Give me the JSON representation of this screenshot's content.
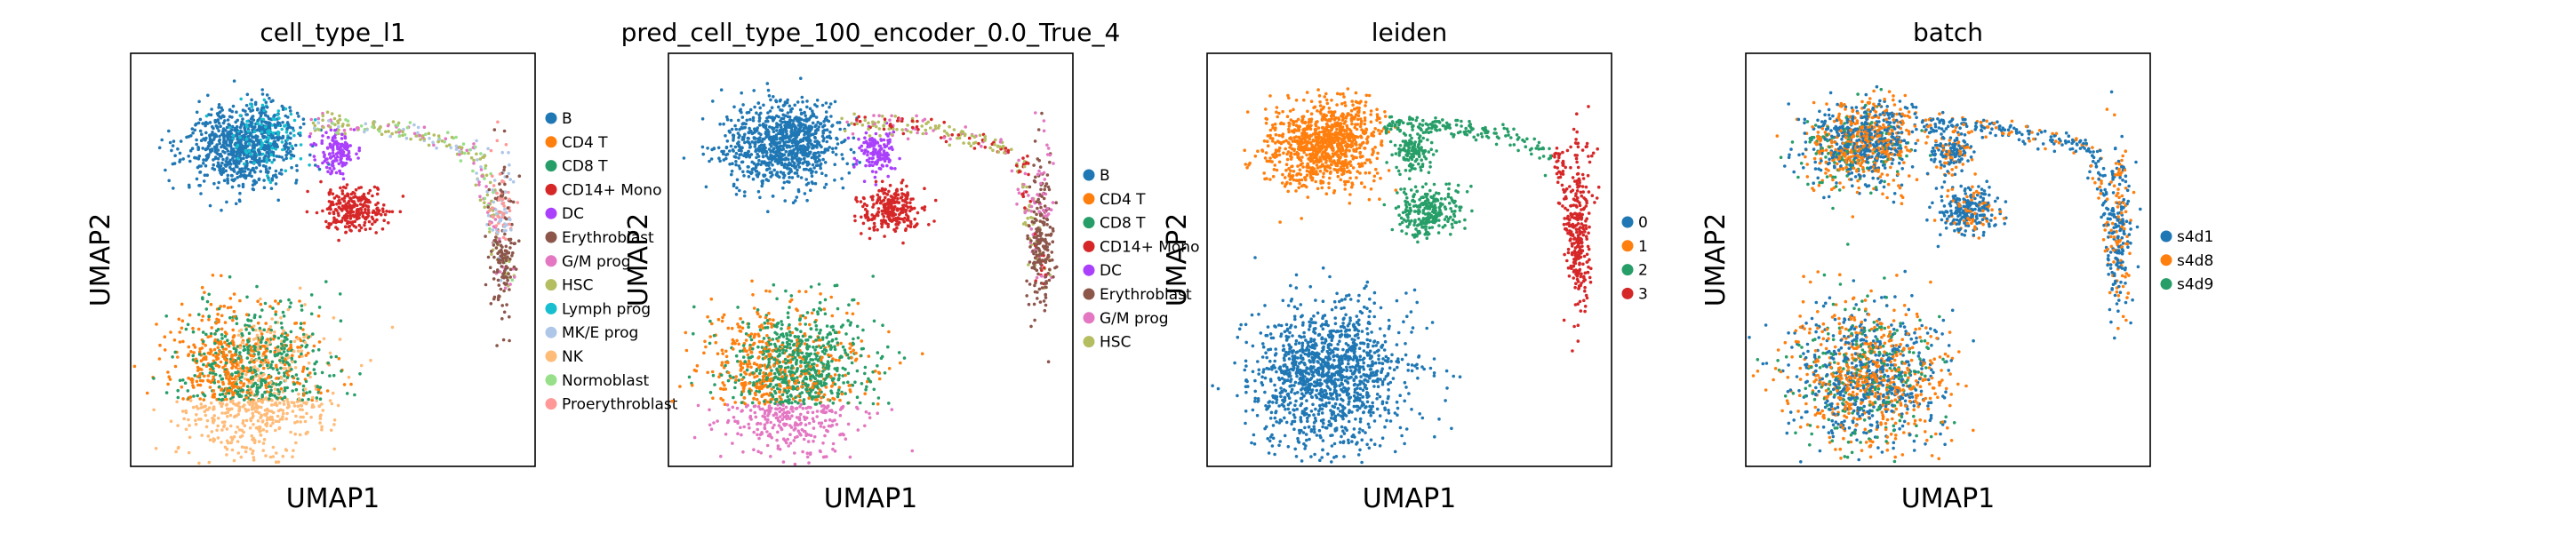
{
  "chart_data": [
    {
      "type": "scatter",
      "title": "cell_type_l1",
      "xlabel": "UMAP1",
      "ylabel": "UMAP2",
      "grid": false,
      "legend_placement": "right",
      "legend": [
        {
          "label": "B",
          "color": "#1f77b4"
        },
        {
          "label": "CD4 T",
          "color": "#ff7f0e"
        },
        {
          "label": "CD8 T",
          "color": "#279e68"
        },
        {
          "label": "CD14+ Mono",
          "color": "#d62728"
        },
        {
          "label": "DC",
          "color": "#aa40fc"
        },
        {
          "label": "Erythroblast",
          "color": "#8c564b"
        },
        {
          "label": "G/M prog",
          "color": "#e377c2"
        },
        {
          "label": "HSC",
          "color": "#b5bd61"
        },
        {
          "label": "Lymph prog",
          "color": "#17becf"
        },
        {
          "label": "MK/E prog",
          "color": "#aec7e8"
        },
        {
          "label": "NK",
          "color": "#ffbb78"
        },
        {
          "label": "Normoblast",
          "color": "#98df8a"
        },
        {
          "label": "Proerythroblast",
          "color": "#ff9896"
        }
      ]
    },
    {
      "type": "scatter",
      "title": "pred_cell_type_100_encoder_0.0_True_4",
      "xlabel": "UMAP1",
      "ylabel": "UMAP2",
      "grid": false,
      "legend_placement": "right",
      "legend": [
        {
          "label": "B",
          "color": "#1f77b4"
        },
        {
          "label": "CD4 T",
          "color": "#ff7f0e"
        },
        {
          "label": "CD8 T",
          "color": "#279e68"
        },
        {
          "label": "CD14+ Mono",
          "color": "#d62728"
        },
        {
          "label": "DC",
          "color": "#aa40fc"
        },
        {
          "label": "Erythroblast",
          "color": "#8c564b"
        },
        {
          "label": "G/M prog",
          "color": "#e377c2"
        },
        {
          "label": "HSC",
          "color": "#b5bd61"
        }
      ]
    },
    {
      "type": "scatter",
      "title": "leiden",
      "xlabel": "UMAP1",
      "ylabel": "UMAP2",
      "grid": false,
      "legend_placement": "right",
      "legend": [
        {
          "label": "0",
          "color": "#1f77b4"
        },
        {
          "label": "1",
          "color": "#ff7f0e"
        },
        {
          "label": "2",
          "color": "#279e68"
        },
        {
          "label": "3",
          "color": "#d62728"
        }
      ]
    },
    {
      "type": "scatter",
      "title": "batch",
      "xlabel": "UMAP1",
      "ylabel": "UMAP2",
      "grid": false,
      "legend_placement": "right",
      "legend": [
        {
          "label": "s4d1",
          "color": "#1f77b4"
        },
        {
          "label": "s4d8",
          "color": "#ff7f0e"
        },
        {
          "label": "s4d9",
          "color": "#279e68"
        }
      ]
    }
  ]
}
